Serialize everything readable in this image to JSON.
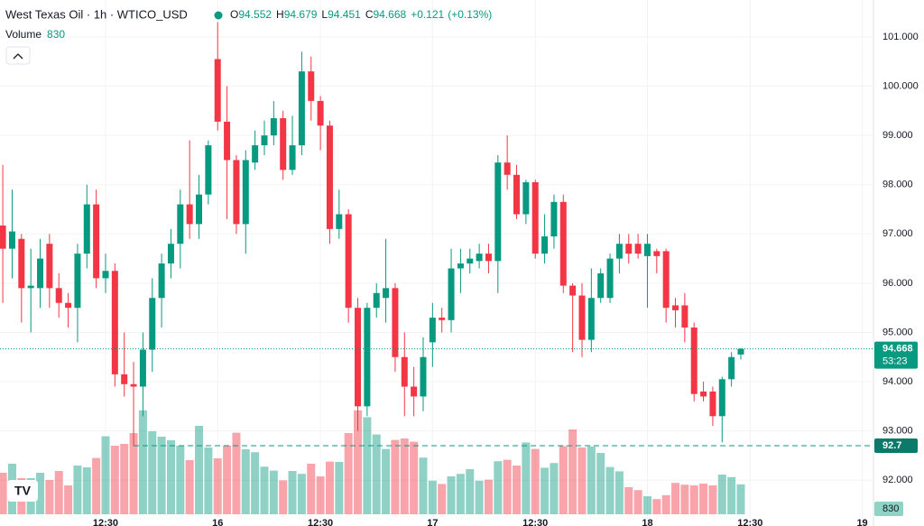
{
  "chart_data": {
    "type": "candlestick",
    "title": "West Texas Oil · 1h · WTICO_USD",
    "legend_keys": {
      "open": "O",
      "high": "H",
      "low": "L",
      "close": "C"
    },
    "change": {
      "value": 0.121,
      "label": "+0.121"
    },
    "change_pct": {
      "value": 0.13,
      "label": "(+0.13%)"
    },
    "volume_title": "Volume",
    "countdown": "53:23",
    "up_color": "#089981",
    "down_color": "#f23645",
    "open": [
      97.17,
      96.7,
      96.9,
      95.9,
      95.9,
      96.8,
      95.9,
      95.6,
      95.5,
      96.6,
      97.6,
      96.1,
      96.25,
      94.15,
      93.95,
      93.9,
      94.65,
      95.7,
      96.4,
      96.8,
      97.6,
      97.2,
      97.8,
      100.55,
      99.28,
      98.5,
      97.2,
      98.45,
      98.8,
      99.0,
      99.35,
      98.3,
      98.8,
      100.3,
      99.7,
      99.2,
      97.1,
      97.4,
      95.5,
      93.5,
      95.5,
      95.7,
      95.9,
      94.5,
      93.9,
      93.7,
      94.8,
      95.3,
      95.25,
      96.3,
      96.4,
      96.45,
      96.6,
      96.45,
      98.45,
      98.2,
      97.4,
      98.05,
      96.6,
      96.95,
      97.65,
      95.95,
      95.75,
      94.85,
      95.7,
      95.7,
      96.5,
      96.8,
      96.8,
      96.55,
      96.65,
      96.65,
      95.55,
      95.55,
      95.1,
      93.8,
      93.8,
      93.3,
      94.05,
      94.552
    ],
    "high": [
      98.4,
      97.9,
      97.0,
      96.7,
      96.9,
      97.0,
      96.2,
      95.8,
      96.8,
      98.0,
      97.9,
      96.6,
      96.4,
      95.0,
      94.4,
      95.0,
      96.1,
      96.6,
      97.1,
      97.9,
      98.9,
      98.2,
      98.9,
      101.3,
      100.0,
      98.6,
      98.7,
      99.1,
      99.3,
      99.7,
      99.5,
      99.4,
      100.7,
      100.6,
      99.8,
      99.3,
      97.9,
      97.5,
      95.7,
      95.6,
      96.0,
      96.9,
      96.0,
      95.0,
      94.3,
      94.9,
      95.6,
      95.5,
      96.7,
      96.7,
      96.7,
      96.8,
      96.8,
      98.6,
      99.0,
      98.4,
      98.1,
      98.1,
      97.4,
      97.8,
      97.8,
      96.0,
      96.0,
      96.3,
      96.3,
      96.6,
      97.0,
      97.0,
      97.0,
      97.0,
      96.7,
      96.7,
      95.7,
      95.8,
      95.2,
      94.0,
      93.9,
      94.1,
      94.6,
      94.679
    ],
    "low": [
      95.6,
      96.1,
      95.2,
      95.0,
      95.5,
      95.5,
      95.3,
      95.1,
      94.8,
      96.3,
      95.9,
      95.8,
      93.9,
      93.7,
      92.7,
      93.3,
      94.2,
      95.1,
      96.1,
      96.3,
      96.9,
      96.9,
      97.6,
      99.1,
      97.3,
      97.0,
      96.6,
      98.3,
      98.6,
      98.8,
      98.1,
      98.2,
      98.6,
      99.3,
      98.7,
      96.8,
      96.9,
      95.2,
      93.0,
      93.3,
      95.3,
      95.2,
      94.2,
      93.3,
      93.3,
      93.4,
      94.3,
      95.0,
      95.0,
      95.8,
      96.2,
      96.3,
      96.2,
      95.8,
      97.9,
      97.3,
      97.2,
      96.5,
      96.4,
      96.7,
      95.8,
      94.6,
      94.5,
      94.6,
      95.6,
      95.6,
      96.2,
      96.4,
      96.5,
      95.5,
      96.2,
      95.2,
      95.1,
      94.8,
      93.6,
      93.6,
      93.1,
      92.768,
      93.9,
      94.451
    ],
    "close": [
      96.7,
      97.05,
      95.9,
      95.95,
      96.5,
      95.9,
      95.6,
      95.5,
      96.6,
      97.6,
      96.1,
      96.25,
      94.15,
      93.95,
      93.9,
      94.65,
      95.7,
      96.4,
      96.8,
      97.6,
      97.2,
      97.8,
      98.8,
      99.28,
      98.5,
      97.2,
      98.5,
      98.8,
      99.0,
      99.35,
      98.3,
      98.8,
      100.3,
      99.7,
      99.2,
      97.1,
      97.4,
      95.5,
      93.5,
      95.5,
      95.8,
      95.9,
      94.5,
      93.9,
      93.7,
      94.5,
      95.3,
      95.25,
      96.3,
      96.4,
      96.5,
      96.6,
      96.45,
      98.45,
      98.2,
      97.4,
      98.05,
      96.6,
      96.95,
      97.65,
      95.95,
      95.75,
      94.85,
      95.7,
      96.2,
      96.5,
      96.8,
      96.6,
      96.6,
      96.8,
      96.55,
      95.5,
      95.45,
      95.1,
      93.75,
      93.7,
      93.3,
      94.05,
      94.5,
      94.668
    ],
    "volume": [
      1150,
      1400,
      1000,
      1000,
      1150,
      950,
      1200,
      800,
      1350,
      1300,
      1560,
      2160,
      1900,
      1950,
      2250,
      2880,
      2300,
      2150,
      2050,
      1900,
      1500,
      2450,
      1850,
      1550,
      1900,
      2260,
      1800,
      1720,
      1320,
      1210,
      940,
      1200,
      1120,
      1400,
      1050,
      1460,
      1450,
      2250,
      2880,
      2690,
      2210,
      1810,
      2060,
      2100,
      2010,
      1570,
      930,
      840,
      1050,
      1120,
      1250,
      930,
      960,
      1470,
      1510,
      1350,
      1990,
      1810,
      1290,
      1420,
      1890,
      2350,
      1850,
      1880,
      1700,
      1310,
      1190,
      750,
      670,
      500,
      420,
      530,
      870,
      820,
      800,
      850,
      800,
      1100,
      1030,
      830
    ],
    "vlim": [
      0,
      14250
    ],
    "ylim": [
      91.07,
      101.75
    ],
    "yticks": [
      {
        "value": 101,
        "label": "101.000"
      },
      {
        "value": 100,
        "label": "100.000"
      },
      {
        "value": 99,
        "label": "99.000"
      },
      {
        "value": 98,
        "label": "98.000"
      },
      {
        "value": 97,
        "label": "97.000"
      },
      {
        "value": 96,
        "label": "96.000"
      },
      {
        "value": 95,
        "label": "95.000"
      },
      {
        "value": 94,
        "label": "94.000"
      },
      {
        "value": 93,
        "label": "93.000"
      },
      {
        "value": 92,
        "label": "92.000"
      }
    ],
    "xlim": [
      -0.3,
      93.2
    ],
    "xticks": [
      {
        "value": 11,
        "label": "12:30"
      },
      {
        "value": 23,
        "label": "16"
      },
      {
        "value": 34,
        "label": "12:30"
      },
      {
        "value": 46,
        "label": "17"
      },
      {
        "value": 57,
        "label": "12:30"
      },
      {
        "value": 69,
        "label": "18"
      },
      {
        "value": 80,
        "label": "12:30"
      },
      {
        "value": 92,
        "label": "19"
      }
    ]
  }
}
